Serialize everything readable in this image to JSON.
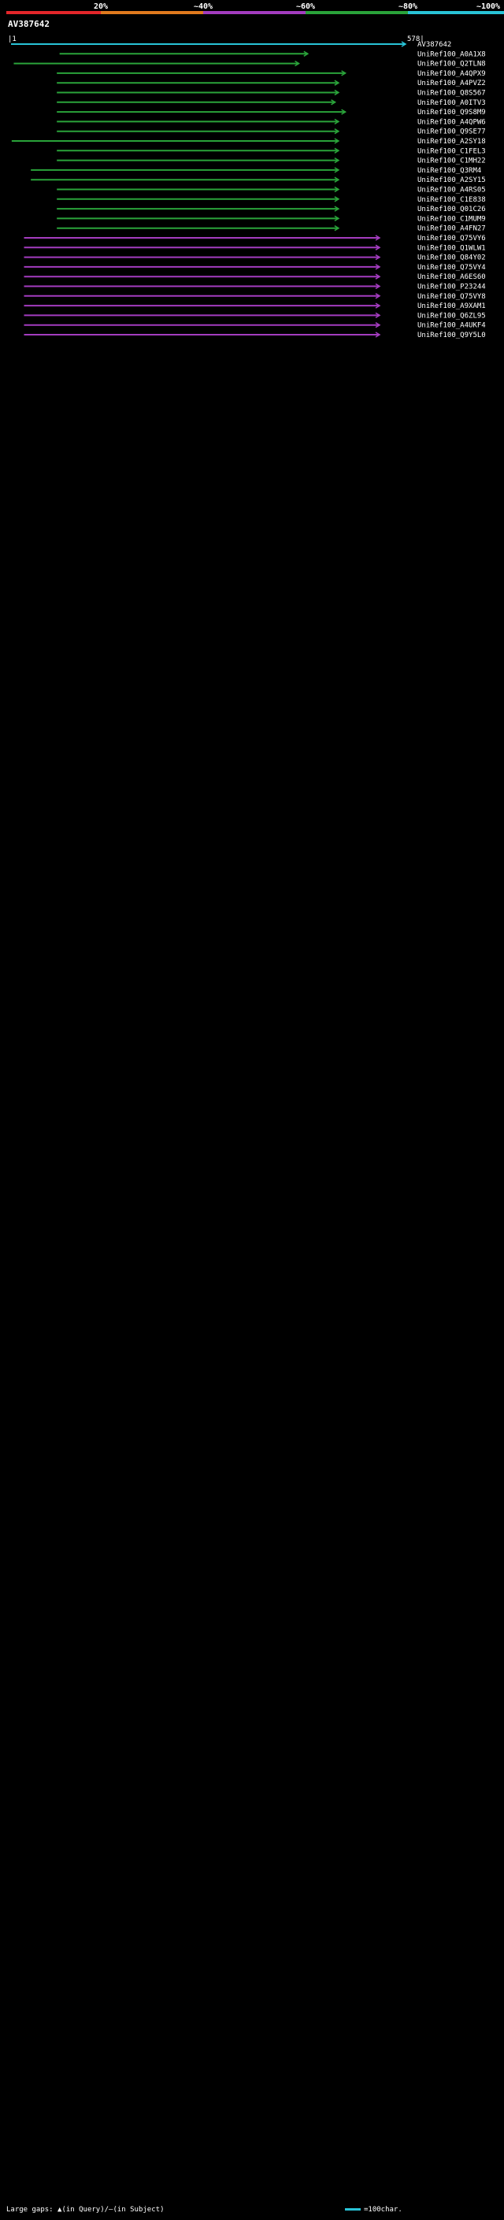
{
  "query": {
    "id": "AV387642",
    "start": "1",
    "end": "578"
  },
  "legend": {
    "ticks": [
      "20%",
      "~40%",
      "~60%",
      "~80%",
      "~100%"
    ],
    "colors": [
      "#e3262a",
      "#e07a1e",
      "#a33cbf",
      "#2aa33a",
      "#29c3d7"
    ]
  },
  "footer": {
    "gaps_label": "Large gaps: ▲(in Query)/—(in Subject)",
    "scale_label": "=100char."
  },
  "chart_data": {
    "type": "alignment-overview",
    "title": "AV387642",
    "query_range": [
      1,
      578
    ],
    "identity_bins": [
      "20%",
      "~40%",
      "~60%",
      "~80%",
      "~100%"
    ],
    "tracks": [
      {
        "name": "AV387642",
        "color": "#29c3d7",
        "q_start": 1,
        "q_end": 578
      },
      {
        "name": "UniRef100_A0A1X8",
        "color": "#2aa33a",
        "q_start": 72,
        "q_end": 435
      },
      {
        "name": "UniRef100_Q2TLN8",
        "color": "#2aa33a",
        "q_start": 5,
        "q_end": 422
      },
      {
        "name": "UniRef100_A4QPX9",
        "color": "#2aa33a",
        "q_start": 68,
        "q_end": 490
      },
      {
        "name": "UniRef100_A4PVZ2",
        "color": "#2aa33a",
        "q_start": 68,
        "q_end": 480
      },
      {
        "name": "UniRef100_Q8S567",
        "color": "#2aa33a",
        "q_start": 68,
        "q_end": 480
      },
      {
        "name": "UniRef100_A0ITV3",
        "color": "#2aa33a",
        "q_start": 68,
        "q_end": 475
      },
      {
        "name": "UniRef100_Q9S8M9",
        "color": "#2aa33a",
        "q_start": 68,
        "q_end": 490
      },
      {
        "name": "UniRef100_A4QPW6",
        "color": "#2aa33a",
        "q_start": 68,
        "q_end": 480
      },
      {
        "name": "UniRef100_Q9SE77",
        "color": "#2aa33a",
        "q_start": 68,
        "q_end": 480
      },
      {
        "name": "UniRef100_A2SY18",
        "color": "#2aa33a",
        "q_start": 2,
        "q_end": 480
      },
      {
        "name": "UniRef100_C1FEL3",
        "color": "#2aa33a",
        "q_start": 68,
        "q_end": 480
      },
      {
        "name": "UniRef100_C1MH22",
        "color": "#2aa33a",
        "q_start": 68,
        "q_end": 480
      },
      {
        "name": "UniRef100_Q3RM4",
        "color": "#2aa33a",
        "q_start": 30,
        "q_end": 480
      },
      {
        "name": "UniRef100_A2SY15",
        "color": "#2aa33a",
        "q_start": 30,
        "q_end": 480
      },
      {
        "name": "UniRef100_A4RS05",
        "color": "#2aa33a",
        "q_start": 68,
        "q_end": 480
      },
      {
        "name": "UniRef100_C1E838",
        "color": "#2aa33a",
        "q_start": 68,
        "q_end": 480
      },
      {
        "name": "UniRef100_Q01C26",
        "color": "#2aa33a",
        "q_start": 68,
        "q_end": 480
      },
      {
        "name": "UniRef100_C1MUM9",
        "color": "#2aa33a",
        "q_start": 68,
        "q_end": 480
      },
      {
        "name": "UniRef100_A4FN27",
        "color": "#2aa33a",
        "q_start": 68,
        "q_end": 480
      },
      {
        "name": "UniRef100_Q75VY6",
        "color": "#a33cbf",
        "q_start": 20,
        "q_end": 540
      },
      {
        "name": "UniRef100_Q1WLW1",
        "color": "#a33cbf",
        "q_start": 20,
        "q_end": 540
      },
      {
        "name": "UniRef100_Q84Y02",
        "color": "#a33cbf",
        "q_start": 20,
        "q_end": 540
      },
      {
        "name": "UniRef100_Q75VY4",
        "color": "#a33cbf",
        "q_start": 20,
        "q_end": 540
      },
      {
        "name": "UniRef100_A6ES60",
        "color": "#a33cbf",
        "q_start": 20,
        "q_end": 540
      },
      {
        "name": "UniRef100_P23244",
        "color": "#a33cbf",
        "q_start": 20,
        "q_end": 540
      },
      {
        "name": "UniRef100_Q75VY8",
        "color": "#a33cbf",
        "q_start": 20,
        "q_end": 540
      },
      {
        "name": "UniRef100_A9XAM1",
        "color": "#a33cbf",
        "q_start": 20,
        "q_end": 540
      },
      {
        "name": "UniRef100_Q6ZL95",
        "color": "#a33cbf",
        "q_start": 20,
        "q_end": 540
      },
      {
        "name": "UniRef100_A4UKF4",
        "color": "#a33cbf",
        "q_start": 20,
        "q_end": 540
      },
      {
        "name": "UniRef100_Q9Y5L0",
        "color": "#a33cbf",
        "q_start": 20,
        "q_end": 540
      }
    ]
  }
}
